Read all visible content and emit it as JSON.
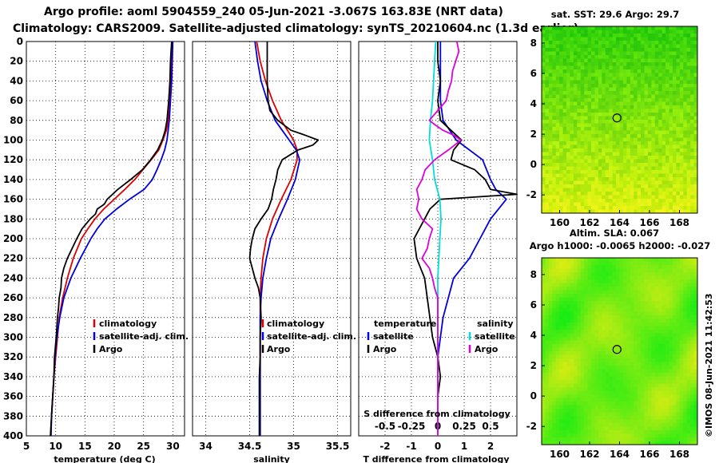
{
  "header": {
    "line1": "Argo profile: aoml 5904559_240 05-Jun-2021 -3.067S 163.83E (NRT data)",
    "line2": "Climatology: CARS2009. Satellite-adjusted climatology: synTS_20210604.nc (1.3d earlier)"
  },
  "credit": "©IMOS 08-Jun-2021 11:42:53",
  "colors": {
    "climatology": "#dd0000",
    "satellite": "#0000dd",
    "argo": "#000000",
    "salinity_diff": "#dd00dd",
    "salinity_sat": "#00dddd"
  },
  "chart_data": [
    {
      "type": "line",
      "id": "temperature",
      "xlabel": "temperature (deg C)",
      "ylabel": "",
      "xlim": [
        5,
        32
      ],
      "ylim": [
        400,
        0
      ],
      "xticks": [
        "5",
        "10",
        "15",
        "20",
        "25",
        "30"
      ],
      "xtick_values": [
        5,
        10,
        15,
        20,
        25,
        30
      ],
      "yticks": [
        "0",
        "20",
        "40",
        "60",
        "80",
        "100",
        "120",
        "140",
        "160",
        "180",
        "200",
        "220",
        "240",
        "260",
        "280",
        "300",
        "320",
        "340",
        "360",
        "380",
        "400"
      ],
      "ytick_values": [
        0,
        20,
        40,
        60,
        80,
        100,
        120,
        140,
        160,
        180,
        200,
        220,
        240,
        260,
        280,
        300,
        320,
        340,
        360,
        380,
        400
      ],
      "legend": [
        "climatology",
        "satellite-adj. clim.",
        "Argo"
      ],
      "series": [
        {
          "name": "climatology",
          "color": "#dd0000",
          "depth": [
            0,
            20,
            40,
            60,
            80,
            90,
            100,
            110,
            120,
            130,
            140,
            150,
            160,
            170,
            180,
            190,
            200,
            220,
            240,
            260,
            280,
            300,
            320,
            340,
            360,
            380,
            400
          ],
          "values": [
            29.9,
            29.8,
            29.7,
            29.5,
            29.2,
            28.9,
            28.3,
            27.6,
            26.3,
            24.9,
            23.5,
            21.8,
            20.0,
            18.2,
            16.7,
            15.5,
            14.4,
            13.0,
            12.0,
            11.2,
            10.6,
            10.3,
            10.0,
            9.7,
            9.5,
            9.3,
            9.2
          ]
        },
        {
          "name": "satellite-adj. clim.",
          "color": "#0000dd",
          "depth": [
            0,
            20,
            40,
            60,
            80,
            90,
            100,
            110,
            120,
            130,
            140,
            150,
            160,
            170,
            180,
            190,
            200,
            220,
            240,
            260,
            280,
            300,
            320,
            340,
            360,
            380,
            400
          ],
          "values": [
            30.0,
            29.9,
            29.8,
            29.6,
            29.4,
            29.2,
            29.0,
            28.6,
            28.0,
            27.3,
            26.5,
            25.1,
            22.6,
            20.4,
            18.4,
            17.1,
            16.0,
            14.2,
            12.6,
            11.4,
            10.7,
            10.2,
            9.9,
            9.7,
            9.5,
            9.3,
            9.2
          ]
        },
        {
          "name": "Argo",
          "color": "#000000",
          "depth": [
            0,
            10,
            20,
            40,
            60,
            80,
            90,
            100,
            110,
            120,
            130,
            140,
            150,
            160,
            165,
            170,
            175,
            180,
            190,
            200,
            210,
            220,
            230,
            240,
            250,
            260,
            270,
            280,
            300,
            320,
            340,
            360,
            380,
            400
          ],
          "values": [
            29.8,
            29.7,
            29.6,
            29.5,
            29.3,
            29.0,
            28.7,
            28.2,
            27.4,
            26.2,
            24.8,
            22.8,
            20.6,
            18.8,
            18.3,
            17.1,
            16.8,
            15.9,
            14.5,
            13.6,
            12.8,
            12.0,
            11.4,
            11.0,
            10.9,
            10.6,
            10.5,
            10.3,
            10.1,
            9.8,
            9.7,
            9.5,
            9.3,
            9.1
          ]
        }
      ]
    },
    {
      "type": "line",
      "id": "salinity",
      "xlabel": "salinity",
      "xlim": [
        33.85,
        35.65
      ],
      "ylim": [
        400,
        0
      ],
      "xticks": [
        "34",
        "34.5",
        "35",
        "35.5"
      ],
      "xtick_values": [
        34,
        34.5,
        35,
        35.5
      ],
      "legend": [
        "climatology",
        "satellite-adj. clim.",
        "Argo"
      ],
      "series": [
        {
          "name": "climatology",
          "color": "#dd0000",
          "depth": [
            0,
            20,
            40,
            60,
            80,
            90,
            100,
            110,
            120,
            140,
            160,
            180,
            200,
            220,
            240,
            260,
            280,
            300,
            320,
            340,
            360,
            380,
            400
          ],
          "values": [
            34.58,
            34.62,
            34.68,
            34.76,
            34.86,
            34.93,
            35.0,
            35.04,
            35.04,
            34.97,
            34.86,
            34.76,
            34.69,
            34.65,
            34.63,
            34.62,
            34.62,
            34.62,
            34.62,
            34.62,
            34.62,
            34.62,
            34.62
          ]
        },
        {
          "name": "satellite-adj. clim.",
          "color": "#0000dd",
          "depth": [
            0,
            20,
            40,
            60,
            80,
            90,
            100,
            110,
            120,
            140,
            160,
            180,
            200,
            220,
            240,
            260,
            280,
            300,
            320,
            340,
            360,
            380,
            400
          ],
          "values": [
            34.56,
            34.59,
            34.63,
            34.7,
            34.79,
            34.87,
            34.95,
            35.03,
            35.07,
            35.02,
            34.93,
            34.83,
            34.74,
            34.69,
            34.65,
            34.63,
            34.62,
            34.62,
            34.62,
            34.62,
            34.62,
            34.62,
            34.62
          ]
        },
        {
          "name": "Argo",
          "color": "#000000",
          "depth": [
            0,
            10,
            20,
            40,
            60,
            70,
            80,
            90,
            95,
            100,
            105,
            110,
            120,
            130,
            140,
            150,
            160,
            170,
            180,
            190,
            200,
            210,
            220,
            230,
            240,
            250,
            260,
            280,
            300,
            320,
            340,
            360,
            380,
            400
          ],
          "values": [
            34.7,
            34.7,
            34.7,
            34.7,
            34.71,
            34.73,
            34.82,
            34.97,
            35.13,
            35.28,
            35.22,
            35.05,
            34.87,
            34.82,
            34.8,
            34.77,
            34.75,
            34.71,
            34.63,
            34.56,
            34.53,
            34.51,
            34.5,
            34.53,
            34.56,
            34.6,
            34.62,
            34.63,
            34.62,
            34.62,
            34.61,
            34.61,
            34.61,
            34.61
          ]
        }
      ]
    },
    {
      "type": "line",
      "id": "difference",
      "xlabel": "T difference from climatology",
      "top_xlabel": "S difference from climatology",
      "xlim": [
        -3,
        3
      ],
      "ylim": [
        400,
        0
      ],
      "xticks": [
        "-2",
        "-1",
        "0",
        "1",
        "2"
      ],
      "xtick_values": [
        -2,
        -1,
        0,
        1,
        2
      ],
      "top_xticks": [
        "-0.5",
        "-0.25",
        "0",
        "0.25",
        "0.5"
      ],
      "top_xtick_values": [
        -0.5,
        -0.25,
        0,
        0.25,
        0.5
      ],
      "legend_temperature_title": "temperature",
      "legend_salinity_title": "salinity",
      "legend_temperature": [
        "satellite",
        "Argo"
      ],
      "legend_salinity": [
        "satellite",
        "Argo"
      ],
      "series": [
        {
          "name": "temperature satellite",
          "color": "#0000dd",
          "axis": "T",
          "depth": [
            0,
            20,
            40,
            60,
            80,
            100,
            120,
            140,
            150,
            160,
            180,
            200,
            220,
            240,
            260,
            280,
            300,
            320,
            340,
            360,
            380,
            400
          ],
          "values": [
            0.1,
            0.1,
            0.1,
            0.1,
            0.2,
            0.7,
            1.7,
            2.0,
            2.2,
            2.6,
            2.0,
            1.6,
            1.2,
            0.6,
            0.4,
            0.2,
            0.1,
            0.0,
            0.0,
            0.0,
            0.0,
            0.0
          ]
        },
        {
          "name": "temperature Argo",
          "color": "#000000",
          "axis": "T",
          "depth": [
            0,
            20,
            40,
            60,
            80,
            90,
            100,
            110,
            120,
            130,
            140,
            150,
            155,
            160,
            170,
            180,
            190,
            200,
            220,
            240,
            260,
            280,
            300,
            320,
            340,
            360,
            380,
            400
          ],
          "values": [
            0.0,
            0.0,
            0.1,
            0.0,
            0.1,
            0.5,
            0.9,
            0.6,
            0.5,
            1.4,
            1.8,
            2.0,
            3.0,
            0.1,
            -0.3,
            -0.5,
            -0.7,
            -0.9,
            -0.8,
            -0.5,
            -0.4,
            -0.3,
            -0.2,
            0.0,
            0.1,
            0.0,
            0.0,
            0.0
          ]
        },
        {
          "name": "salinity satellite",
          "color": "#00dddd",
          "axis": "S",
          "depth": [
            0,
            20,
            40,
            60,
            80,
            100,
            120,
            140,
            160,
            180,
            200,
            220,
            240,
            260,
            280,
            300,
            320,
            340,
            360,
            380,
            400
          ],
          "values": [
            -0.02,
            -0.03,
            -0.04,
            -0.05,
            -0.07,
            -0.08,
            -0.05,
            -0.03,
            0.02,
            0.03,
            0.02,
            0.01,
            0.0,
            0.0,
            0.0,
            0.0,
            0.0,
            0.0,
            0.0,
            0.0,
            0.0
          ]
        },
        {
          "name": "salinity Argo",
          "color": "#dd00dd",
          "axis": "S",
          "depth": [
            0,
            10,
            20,
            30,
            40,
            50,
            60,
            70,
            80,
            85,
            90,
            95,
            100,
            110,
            120,
            130,
            140,
            150,
            160,
            170,
            180,
            190,
            200,
            210,
            220,
            230,
            240,
            250,
            260,
            270,
            280,
            300,
            320,
            340,
            360,
            380,
            400
          ],
          "values": [
            0.18,
            0.2,
            0.17,
            0.14,
            0.13,
            0.1,
            0.08,
            0.0,
            -0.08,
            -0.02,
            0.05,
            0.15,
            0.22,
            0.1,
            -0.03,
            -0.12,
            -0.15,
            -0.2,
            -0.18,
            -0.2,
            -0.15,
            -0.05,
            -0.08,
            -0.1,
            -0.15,
            -0.08,
            -0.05,
            -0.03,
            0.0,
            0.0,
            0.0,
            0.0,
            0.0,
            0.0,
            0.0,
            0.0,
            0.0
          ]
        }
      ]
    }
  ],
  "maps": [
    {
      "id": "sst",
      "title": "sat. SST: 29.6 Argo: 29.7",
      "xticks": [
        "160",
        "162",
        "164",
        "166",
        "168"
      ],
      "xtick_values": [
        160,
        162,
        164,
        166,
        168
      ],
      "yticks": [
        "-2",
        "0",
        "2",
        "4",
        "6",
        "8"
      ],
      "ytick_values": [
        -2,
        0,
        2,
        4,
        6,
        8
      ],
      "xlim": [
        158.8,
        169.2
      ],
      "ylim": [
        -3.2,
        9.1
      ],
      "marker": {
        "lon": 163.83,
        "lat": 3.07
      }
    },
    {
      "id": "sla",
      "title_line1": "Altim. SLA: 0.067",
      "title_line2": "Argo h1000: -0.0065 h2000: -0.027",
      "xticks": [
        "160",
        "162",
        "164",
        "166",
        "168"
      ],
      "xtick_values": [
        160,
        162,
        164,
        166,
        168
      ],
      "yticks": [
        "-2",
        "0",
        "2",
        "4",
        "6",
        "8"
      ],
      "ytick_values": [
        -2,
        0,
        2,
        4,
        6,
        8
      ],
      "xlim": [
        158.8,
        169.2
      ],
      "ylim": [
        -3.2,
        9.1
      ],
      "marker": {
        "lon": 163.83,
        "lat": 3.07
      }
    }
  ]
}
